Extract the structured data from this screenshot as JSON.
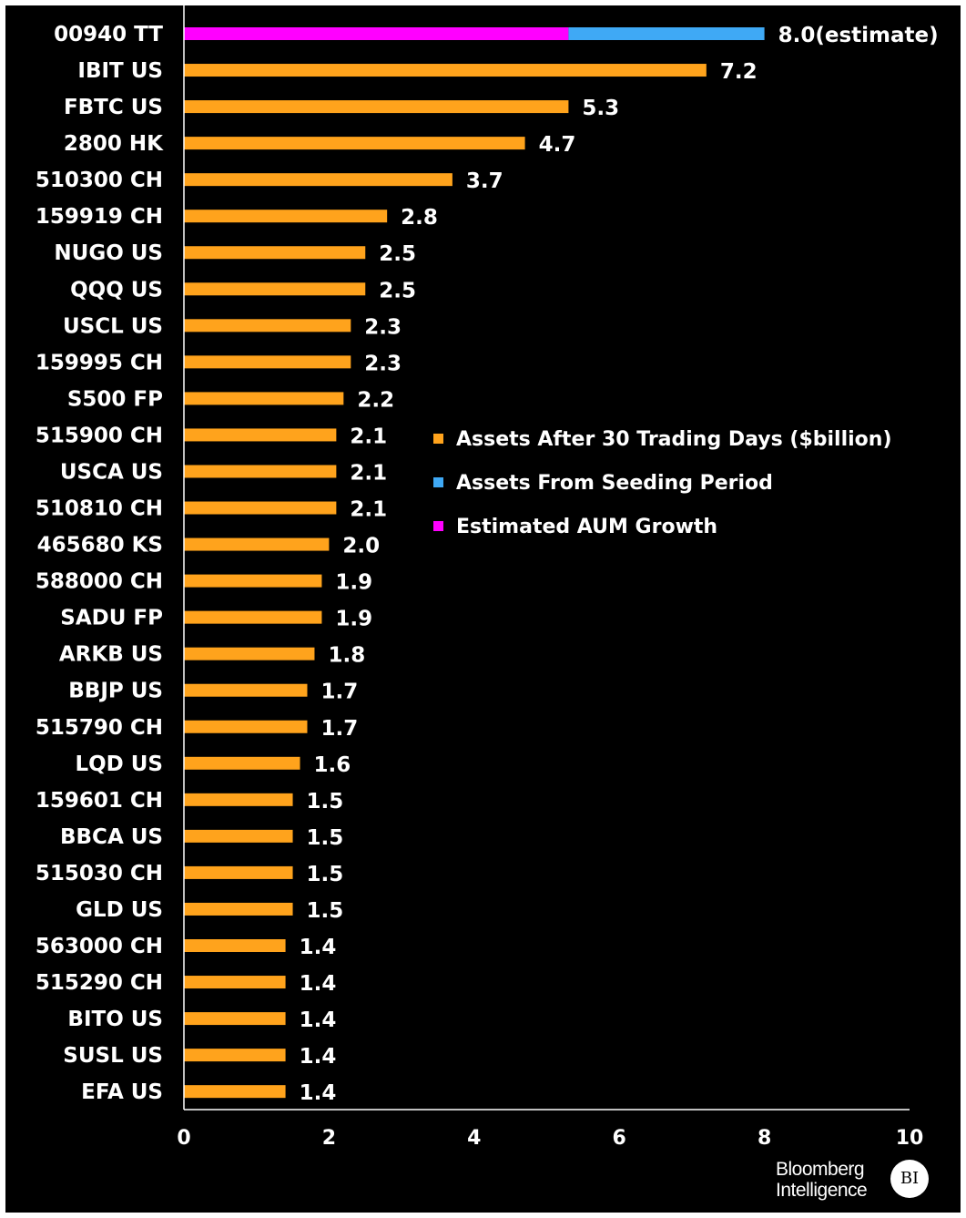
{
  "chart_data": {
    "type": "bar",
    "orientation": "horizontal",
    "stacked": true,
    "categories": [
      "00940 TT",
      "IBIT US",
      "FBTC US",
      "2800 HK",
      "510300 CH",
      "159919 CH",
      "NUGO US",
      "QQQ US",
      "USCL US",
      "159995 CH",
      "S500 FP",
      "515900 CH",
      "USCA US",
      "510810 CH",
      "465680 KS",
      "588000 CH",
      "SADU FP",
      "ARKB US",
      "BBJP US",
      "515790 CH",
      "LQD US",
      "159601 CH",
      "BBCA US",
      "515030 CH",
      "GLD US",
      "563000 CH",
      "515290 CH",
      "BITO US",
      "SUSL US",
      "EFA US"
    ],
    "series": [
      {
        "name": "Assets After 30 Trading Days ($billion)",
        "color": "#ffa31c",
        "values": [
          0,
          7.2,
          5.3,
          4.7,
          3.7,
          2.8,
          2.5,
          2.5,
          2.3,
          2.3,
          2.2,
          2.1,
          2.1,
          2.1,
          2.0,
          1.9,
          1.9,
          1.8,
          1.7,
          1.7,
          1.6,
          1.5,
          1.5,
          1.5,
          1.5,
          1.4,
          1.4,
          1.4,
          1.4,
          1.4
        ]
      },
      {
        "name": "Assets From Seeding Period",
        "color": "#3fa9f5",
        "values": [
          2.7,
          0,
          0,
          0,
          0,
          0,
          0,
          0,
          0,
          0,
          0,
          0,
          0,
          0,
          0,
          0,
          0,
          0,
          0,
          0,
          0,
          0,
          0,
          0,
          0,
          0,
          0,
          0,
          0,
          0
        ]
      },
      {
        "name": "Estimated AUM Growth",
        "color": "#ff00ff",
        "values": [
          5.3,
          0,
          0,
          0,
          0,
          0,
          0,
          0,
          0,
          0,
          0,
          0,
          0,
          0,
          0,
          0,
          0,
          0,
          0,
          0,
          0,
          0,
          0,
          0,
          0,
          0,
          0,
          0,
          0,
          0
        ]
      }
    ],
    "stack_order": [
      2,
      1,
      0
    ],
    "data_labels": [
      "8.0(estimate)",
      "7.2",
      "5.3",
      "4.7",
      "3.7",
      "2.8",
      "2.5",
      "2.5",
      "2.3",
      "2.3",
      "2.2",
      "2.1",
      "2.1",
      "2.1",
      "2.0",
      "1.9",
      "1.9",
      "1.8",
      "1.7",
      "1.7",
      "1.6",
      "1.5",
      "1.5",
      "1.5",
      "1.5",
      "1.4",
      "1.4",
      "1.4",
      "1.4",
      "1.4"
    ],
    "xlim": [
      0,
      10
    ],
    "xticks": [
      "0",
      "2",
      "4",
      "6",
      "8",
      "10"
    ],
    "xlabel": "",
    "ylabel": "",
    "title": "",
    "grid": false,
    "legend_position": "center-right",
    "background": "#000000"
  },
  "branding": {
    "line1": "Bloomberg",
    "line2": "Intelligence",
    "badge": "BI"
  }
}
